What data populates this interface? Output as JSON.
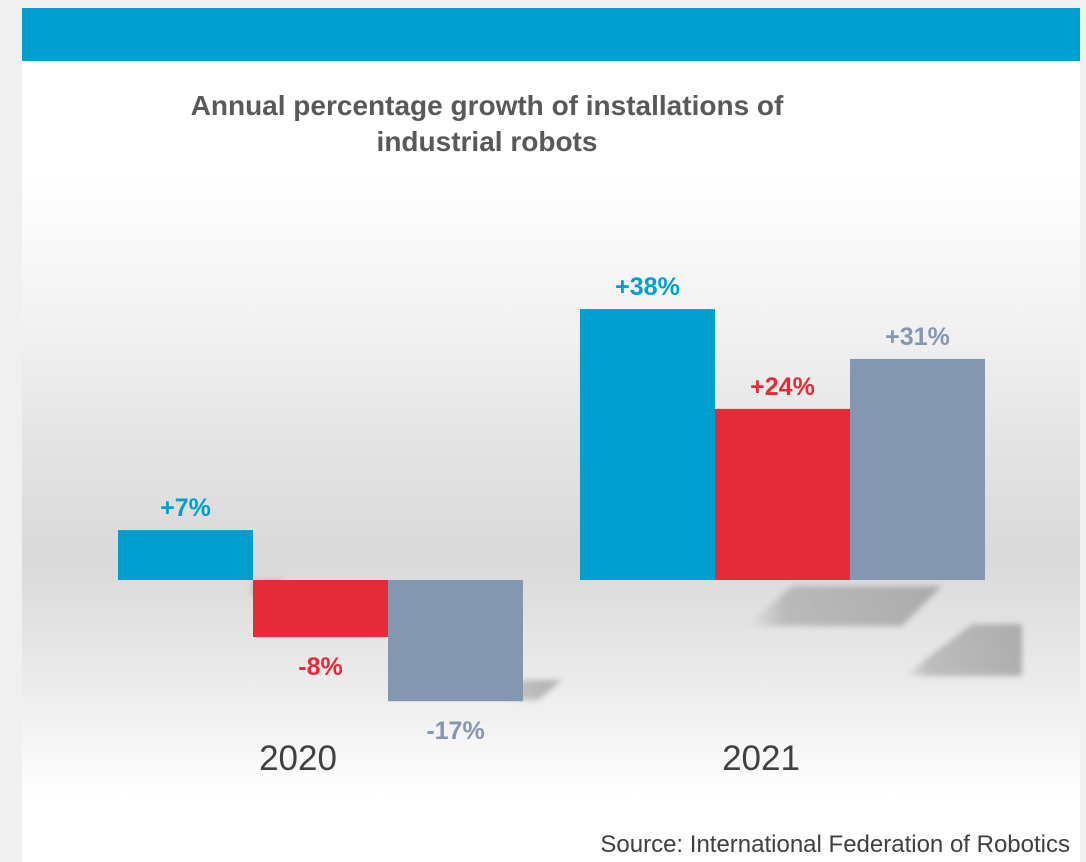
{
  "chart_data": {
    "type": "bar",
    "title": "Annual percentage growth of installations of industrial robots",
    "categories": [
      "2020",
      "2021"
    ],
    "series": [
      {
        "values": [
          7,
          38
        ],
        "labels": [
          "+7%",
          "+38%"
        ],
        "color": "#009fd0"
      },
      {
        "values": [
          -8,
          24
        ],
        "labels": [
          "-8%",
          "+24%"
        ],
        "color": "#e32b3a"
      },
      {
        "values": [
          -17,
          31
        ],
        "labels": [
          "-17%",
          "+31%"
        ],
        "color": "#8496b0"
      }
    ],
    "ylim": [
      -20,
      40
    ],
    "grid": false,
    "source": "Source: International Federation of Robotics"
  }
}
